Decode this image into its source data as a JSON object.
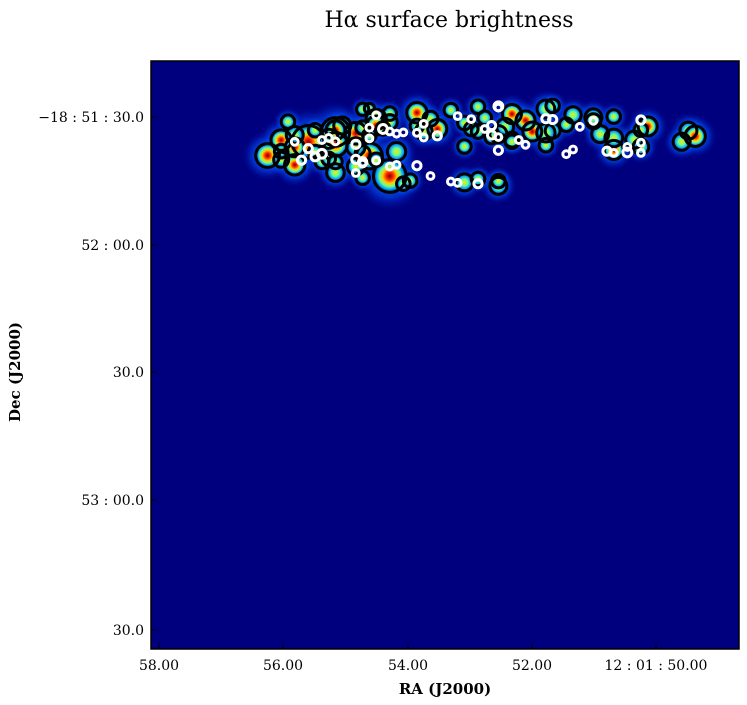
{
  "chart_data": {
    "type": "image",
    "title": "Hα surface brightness",
    "xlabel": "RA (J2000)",
    "ylabel": "Dec (J2000)",
    "x_ticks": [
      "58.00",
      "56.00",
      "54.00",
      "52.00",
      "12 : 01 : 50.00"
    ],
    "y_ticks": [
      "−18 : 51 : 30.0",
      "52 : 00.0",
      "30.0",
      "53 : 00.0",
      "30.0"
    ],
    "colormap": "jet",
    "background_color": "#00007f",
    "regions": {
      "black_circle_color": "#000000",
      "white_circle_color": "#ffffff",
      "black_circles": [
        {
          "ra_s": 55.0,
          "dec_s": 91.8,
          "r": 0.18
        },
        {
          "ra_s": 54.9,
          "dec_s": 92.0,
          "r": 0.15
        },
        {
          "ra_s": 53.7,
          "dec_s": 91.6,
          "r": 0.2
        },
        {
          "ra_s": 52.8,
          "dec_s": 90.7,
          "r": 0.28
        },
        {
          "ra_s": 52.3,
          "dec_s": 91.9,
          "r": 0.26
        },
        {
          "ra_s": 51.9,
          "dec_s": 90.5,
          "r": 0.24
        },
        {
          "ra_s": 53.2,
          "dec_s": 89.8,
          "r": 0.2
        },
        {
          "ra_s": 52.6,
          "dec_s": 89.2,
          "r": 0.28
        },
        {
          "ra_s": 51.6,
          "dec_s": 89.0,
          "r": 0.22
        },
        {
          "ra_s": 52.0,
          "dec_s": 88.2,
          "r": 0.2
        },
        {
          "ra_s": 50.8,
          "dec_s": 87.8,
          "r": 0.28
        },
        {
          "ra_s": 50.2,
          "dec_s": 86.8,
          "r": 0.25
        },
        {
          "ra_s": 50.1,
          "dec_s": 85.5,
          "r": 0.3
        },
        {
          "ra_s": 50.3,
          "dec_s": 84.2,
          "r": 0.25
        },
        {
          "ra_s": 50.9,
          "dec_s": 83.0,
          "r": 0.23
        },
        {
          "ra_s": 51.3,
          "dec_s": 82.3,
          "r": 0.28
        },
        {
          "ra_s": 52.3,
          "dec_s": 83.4,
          "r": 0.2
        },
        {
          "ra_s": 52.8,
          "dec_s": 84.7,
          "r": 0.22
        },
        {
          "ra_s": 53.0,
          "dec_s": 86.0,
          "r": 0.25
        },
        {
          "ra_s": 52.5,
          "dec_s": 86.6,
          "r": 0.28
        },
        {
          "ra_s": 52.2,
          "dec_s": 86.8,
          "r": 0.22
        },
        {
          "ra_s": 53.4,
          "dec_s": 87.2,
          "r": 0.2
        },
        {
          "ra_s": 53.9,
          "dec_s": 87.2,
          "r": 0.28
        },
        {
          "ra_s": 54.0,
          "dec_s": 89.6,
          "r": 0.22
        },
        {
          "ra_s": 54.2,
          "dec_s": 91.0,
          "r": 0.3
        },
        {
          "ra_s": 54.6,
          "dec_s": 90.8,
          "r": 0.2
        },
        {
          "ra_s": 54.8,
          "dec_s": 89.4,
          "r": 0.3
        },
        {
          "ra_s": 54.6,
          "dec_s": 88.8,
          "r": 0.22
        },
        {
          "ra_s": 54.8,
          "dec_s": 88.0,
          "r": 0.28
        },
        {
          "ra_s": 55.3,
          "dec_s": 88.0,
          "r": 0.25
        },
        {
          "ra_s": 55.4,
          "dec_s": 86.5,
          "r": 0.42
        },
        {
          "ra_s": 55.1,
          "dec_s": 86.2,
          "r": 0.32
        },
        {
          "ra_s": 55.5,
          "dec_s": 84.9,
          "r": 0.28
        },
        {
          "ra_s": 55.8,
          "dec_s": 84.2,
          "r": 0.48
        },
        {
          "ra_s": 55.4,
          "dec_s": 83.6,
          "r": 0.35
        },
        {
          "ra_s": 56.2,
          "dec_s": 84.6,
          "r": 0.3
        },
        {
          "ra_s": 56.0,
          "dec_s": 82.9,
          "r": 0.28
        },
        {
          "ra_s": 55.0,
          "dec_s": 81.5,
          "r": 0.22
        },
        {
          "ra_s": 54.9,
          "dec_s": 80.9,
          "r": 0.38
        },
        {
          "ra_s": 55.6,
          "dec_s": 79.5,
          "r": 0.2
        },
        {
          "ra_s": 55.5,
          "dec_s": 80.2,
          "r": 0.2
        },
        {
          "ra_s": 56.2,
          "dec_s": 80.0,
          "r": 0.22
        },
        {
          "ra_s": 56.0,
          "dec_s": 78.8,
          "r": 0.3
        },
        {
          "ra_s": 55.1,
          "dec_s": 78.4,
          "r": 0.25
        },
        {
          "ra_s": 55.4,
          "dec_s": 77.0,
          "r": 0.26
        },
        {
          "ra_s": 54.6,
          "dec_s": 76.2,
          "r": 0.48
        },
        {
          "ra_s": 55.4,
          "dec_s": 79.5,
          "r": 0.2
        },
        {
          "ra_s": 54.5,
          "dec_s": 81.9,
          "r": 0.27
        },
        {
          "ra_s": 55.0,
          "dec_s": 75.8,
          "r": 0.2
        },
        {
          "ra_s": 54.4,
          "dec_s": 74.4,
          "r": 0.2
        },
        {
          "ra_s": 53.5,
          "dec_s": 74.7,
          "r": 0.25
        },
        {
          "ra_s": 53.0,
          "dec_s": 73.9,
          "r": 0.25
        },
        {
          "ra_s": 56.0,
          "dec_s": 85.8,
          "r": 0.25
        },
        {
          "ra_s": 55.4,
          "dec_s": 86.9,
          "r": 0.28
        },
        {
          "ra_s": 55.0,
          "dec_s": 87.5,
          "r": 0.2
        },
        {
          "ra_s": 54.1,
          "dec_s": 86.6,
          "r": 0.25
        },
        {
          "ra_s": 53.3,
          "dec_s": 86.6,
          "r": 0.2
        },
        {
          "ra_s": 53.1,
          "dec_s": 85.3,
          "r": 0.2
        },
        {
          "ra_s": 52.8,
          "dec_s": 84.2,
          "r": 0.2
        },
        {
          "ra_s": 52.3,
          "dec_s": 86.3,
          "r": 0.27
        },
        {
          "ra_s": 51.5,
          "dec_s": 86.0,
          "r": 0.25
        },
        {
          "ra_s": 51.3,
          "dec_s": 85.1,
          "r": 0.26
        },
        {
          "ra_s": 51.0,
          "dec_s": 84.7,
          "r": 0.25
        },
        {
          "ra_s": 54.2,
          "dec_s": 87.9,
          "r": 0.2
        },
        {
          "ra_s": 55.1,
          "dec_s": 83.0,
          "r": 0.27
        },
        {
          "ra_s": 54.8,
          "dec_s": 80.0,
          "r": 0.2
        },
        {
          "ra_s": 56.4,
          "dec_s": 81.0,
          "r": 0.35
        },
        {
          "ra_s": 55.7,
          "dec_s": 81.8,
          "r": 0.2
        },
        {
          "ra_s": 56.2,
          "dec_s": 82.0,
          "r": 0.2
        },
        {
          "ra_s": 54.9,
          "dec_s": 85.7,
          "r": 0.2
        },
        {
          "ra_s": 55.7,
          "dec_s": 86.9,
          "r": 0.2
        },
        {
          "ra_s": 56.1,
          "dec_s": 88.9,
          "r": 0.2
        },
        {
          "ra_s": 54.7,
          "dec_s": 87.3,
          "r": 0.2
        },
        {
          "ra_s": 53.5,
          "dec_s": 88.6,
          "r": 0.2
        },
        {
          "ra_s": 52.9,
          "dec_s": 87.7,
          "r": 0.25
        },
        {
          "ra_s": 50.9,
          "dec_s": 87.0,
          "r": 0.2
        },
        {
          "ra_s": 51.6,
          "dec_s": 89.9,
          "r": 0.25
        },
        {
          "ra_s": 53.3,
          "dec_s": 92.4,
          "r": 0.2
        },
        {
          "ra_s": 52.2,
          "dec_s": 92.6,
          "r": 0.2
        },
        {
          "ra_s": 51.3,
          "dec_s": 90.1,
          "r": 0.2
        },
        {
          "ra_s": 53.5,
          "dec_s": 83.1,
          "r": 0.2
        },
        {
          "ra_s": 53.0,
          "dec_s": 75.0,
          "r": 0.2
        },
        {
          "ra_s": 53.3,
          "dec_s": 75.5,
          "r": 0.2
        },
        {
          "ra_s": 54.3,
          "dec_s": 75.1,
          "r": 0.2
        }
      ],
      "white_circles": [
        {
          "ra_s": 53.0,
          "dec_s": 92.5,
          "r": 0.13
        },
        {
          "ra_s": 53.0,
          "dec_s": 92.2,
          "r": 0.1
        },
        {
          "ra_s": 54.8,
          "dec_s": 90.4,
          "r": 0.1
        },
        {
          "ra_s": 53.6,
          "dec_s": 90.2,
          "r": 0.1
        },
        {
          "ra_s": 53.4,
          "dec_s": 89.5,
          "r": 0.1
        },
        {
          "ra_s": 52.3,
          "dec_s": 89.6,
          "r": 0.12
        },
        {
          "ra_s": 52.2,
          "dec_s": 89.4,
          "r": 0.12
        },
        {
          "ra_s": 50.9,
          "dec_s": 89.3,
          "r": 0.12
        },
        {
          "ra_s": 51.6,
          "dec_s": 89.1,
          "r": 0.1
        },
        {
          "ra_s": 54.1,
          "dec_s": 88.4,
          "r": 0.1
        },
        {
          "ra_s": 53.1,
          "dec_s": 88.0,
          "r": 0.12
        },
        {
          "ra_s": 51.8,
          "dec_s": 87.7,
          "r": 0.1
        },
        {
          "ra_s": 54.9,
          "dec_s": 87.5,
          "r": 0.1
        },
        {
          "ra_s": 54.7,
          "dec_s": 87.2,
          "r": 0.13
        },
        {
          "ra_s": 54.6,
          "dec_s": 86.6,
          "r": 0.1
        },
        {
          "ra_s": 54.4,
          "dec_s": 86.4,
          "r": 0.1
        },
        {
          "ra_s": 54.2,
          "dec_s": 86.3,
          "r": 0.1
        },
        {
          "ra_s": 54.5,
          "dec_s": 86.1,
          "r": 0.1
        },
        {
          "ra_s": 53.9,
          "dec_s": 85.6,
          "r": 0.12
        },
        {
          "ra_s": 54.1,
          "dec_s": 85.2,
          "r": 0.1
        },
        {
          "ra_s": 55.5,
          "dec_s": 85.1,
          "r": 0.1
        },
        {
          "ra_s": 54.9,
          "dec_s": 85.0,
          "r": 0.1
        },
        {
          "ra_s": 55.6,
          "dec_s": 84.6,
          "r": 0.1
        },
        {
          "ra_s": 56.0,
          "dec_s": 84.2,
          "r": 0.1
        },
        {
          "ra_s": 55.4,
          "dec_s": 84.3,
          "r": 0.1
        },
        {
          "ra_s": 55.1,
          "dec_s": 83.6,
          "r": 0.12
        },
        {
          "ra_s": 55.8,
          "dec_s": 82.6,
          "r": 0.12
        },
        {
          "ra_s": 53.1,
          "dec_s": 85.8,
          "r": 0.12
        },
        {
          "ra_s": 53.0,
          "dec_s": 85.3,
          "r": 0.1
        },
        {
          "ra_s": 52.7,
          "dec_s": 84.6,
          "r": 0.1
        },
        {
          "ra_s": 52.6,
          "dec_s": 83.5,
          "r": 0.1
        },
        {
          "ra_s": 53.0,
          "dec_s": 82.2,
          "r": 0.12
        },
        {
          "ra_s": 51.1,
          "dec_s": 83.0,
          "r": 0.1
        },
        {
          "ra_s": 51.9,
          "dec_s": 82.4,
          "r": 0.1
        },
        {
          "ra_s": 51.4,
          "dec_s": 82.0,
          "r": 0.12
        },
        {
          "ra_s": 51.1,
          "dec_s": 81.7,
          "r": 0.13
        },
        {
          "ra_s": 50.9,
          "dec_s": 84.0,
          "r": 0.1
        },
        {
          "ra_s": 52.0,
          "dec_s": 81.3,
          "r": 0.1
        },
        {
          "ra_s": 50.9,
          "dec_s": 81.6,
          "r": 0.1
        },
        {
          "ra_s": 55.6,
          "dec_s": 81.4,
          "r": 0.13
        },
        {
          "ra_s": 55.7,
          "dec_s": 80.7,
          "r": 0.12
        },
        {
          "ra_s": 55.9,
          "dec_s": 79.9,
          "r": 0.12
        },
        {
          "ra_s": 55.1,
          "dec_s": 80.1,
          "r": 0.12
        },
        {
          "ra_s": 55.0,
          "dec_s": 79.5,
          "r": 0.12
        },
        {
          "ra_s": 55.0,
          "dec_s": 79.1,
          "r": 0.1
        },
        {
          "ra_s": 54.8,
          "dec_s": 79.8,
          "r": 0.1
        },
        {
          "ra_s": 54.6,
          "dec_s": 78.4,
          "r": 0.1
        },
        {
          "ra_s": 54.5,
          "dec_s": 78.8,
          "r": 0.1
        },
        {
          "ra_s": 54.2,
          "dec_s": 78.6,
          "r": 0.12
        },
        {
          "ra_s": 55.1,
          "dec_s": 76.9,
          "r": 0.1
        },
        {
          "ra_s": 54.0,
          "dec_s": 76.2,
          "r": 0.1
        },
        {
          "ra_s": 53.7,
          "dec_s": 74.9,
          "r": 0.1
        },
        {
          "ra_s": 53.6,
          "dec_s": 74.6,
          "r": 0.1
        },
        {
          "ra_s": 53.3,
          "dec_s": 74.4,
          "r": 0.12
        },
        {
          "ra_s": 51.3,
          "dec_s": 81.6,
          "r": 0.1
        },
        {
          "ra_s": 53.2,
          "dec_s": 87.2,
          "r": 0.1
        }
      ]
    }
  }
}
